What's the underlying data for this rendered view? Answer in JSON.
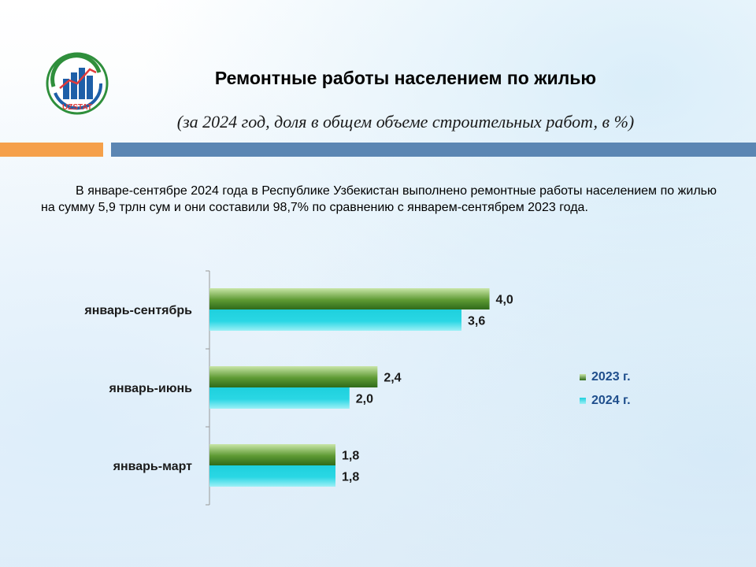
{
  "header": {
    "logo_text": "UZSTAT",
    "title": "Ремонтные работы населением по жилью",
    "subtitle": "(за 2024 год, доля в общем объеме строительных работ, в %)"
  },
  "paragraph": "В январе-сентябре 2024 года в Республике Узбекистан выполнено ремонтные работы населением по жилью на сумму 5,9 трлн сум и они составили 98,7% по сравнению с январем-сентябрем 2023 года.",
  "colors": {
    "accent_orange": "#f5a04a",
    "accent_blue": "#5b86b3",
    "series_2023": "#4f8a2c",
    "series_2024": "#1fc6d6",
    "legend_text": "#1f4e8c"
  },
  "chart_data": {
    "type": "bar",
    "orientation": "horizontal",
    "categories": [
      "январь-сентябрь",
      "январь-июнь",
      "январь-март"
    ],
    "series": [
      {
        "name": "2023 г.",
        "values": [
          4.0,
          2.4,
          1.8
        ],
        "labels": [
          "4,0",
          "2,4",
          "1,8"
        ]
      },
      {
        "name": "2024 г.",
        "values": [
          3.6,
          2.0,
          1.8
        ],
        "labels": [
          "3,6",
          "2,0",
          "1,8"
        ]
      }
    ],
    "xlim": [
      0,
      4.5
    ],
    "legend_position": "right",
    "grid": false
  }
}
